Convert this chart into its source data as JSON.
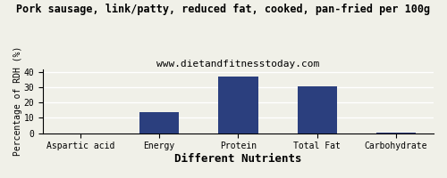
{
  "title": "Pork sausage, link/patty, reduced fat, cooked, pan-fried per 100g",
  "subtitle": "www.dietandfitnesstoday.com",
  "categories": [
    "Aspartic acid",
    "Energy",
    "Protein",
    "Total Fat",
    "Carbohydrate"
  ],
  "values": [
    0,
    13.5,
    37,
    31,
    0.5
  ],
  "bar_color": "#2b3f7e",
  "xlabel": "Different Nutrients",
  "ylabel": "Percentage of RDH (%)",
  "ylim": [
    0,
    42
  ],
  "yticks": [
    0,
    10,
    20,
    30,
    40
  ],
  "title_fontsize": 8.5,
  "subtitle_fontsize": 8,
  "xlabel_fontsize": 9,
  "ylabel_fontsize": 7,
  "tick_fontsize": 7,
  "background_color": "#f0f0e8",
  "grid_color": "#ffffff"
}
